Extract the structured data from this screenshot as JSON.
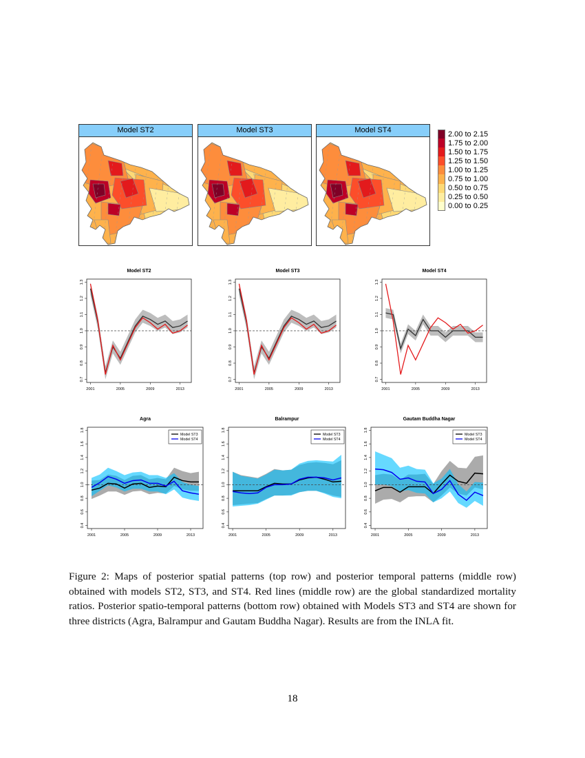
{
  "maps": {
    "panels": [
      {
        "title": "Model ST2"
      },
      {
        "title": "Model ST3"
      },
      {
        "title": "Model ST4"
      }
    ],
    "legend": [
      {
        "label": "2.00 to 2.15",
        "color": "#7f0026"
      },
      {
        "label": "1.75 to 2.00",
        "color": "#bd0026"
      },
      {
        "label": "1.50 to 1.75",
        "color": "#e31a1c"
      },
      {
        "label": "1.25 to 1.50",
        "color": "#fc4e2a"
      },
      {
        "label": "1.00 to 1.25",
        "color": "#fd8d3c"
      },
      {
        "label": "0.75 to 1.00",
        "color": "#feb24c"
      },
      {
        "label": "0.50 to 0.75",
        "color": "#fed976"
      },
      {
        "label": "0.25 to 0.50",
        "color": "#ffeda0"
      },
      {
        "label": "0.00 to 0.25",
        "color": "#ffffcc"
      }
    ]
  },
  "chart_data": [
    {
      "type": "line",
      "title": "Model ST2",
      "x": [
        2001,
        2002,
        2003,
        2004,
        2005,
        2006,
        2007,
        2008,
        2009,
        2010,
        2011,
        2012,
        2013,
        2014
      ],
      "xticks": [
        "2001",
        "2005",
        "2009",
        "2013"
      ],
      "yticks": [
        "0.7",
        "0.8",
        "0.9",
        "1.0",
        "1.1",
        "1.2",
        "1.3"
      ],
      "ylim": [
        0.7,
        1.3
      ],
      "reference_line": 1.0,
      "series": [
        {
          "color": "#333333",
          "band_color": "#bdbdbd",
          "values": [
            1.26,
            1.05,
            0.74,
            0.9,
            0.83,
            0.93,
            1.03,
            1.09,
            1.07,
            1.04,
            1.06,
            1.02,
            1.03,
            1.06
          ],
          "band": 0.04
        },
        {
          "color": "#e41a1c",
          "values": [
            1.29,
            1.06,
            0.73,
            0.91,
            0.82,
            0.92,
            1.02,
            1.08,
            1.05,
            1.01,
            1.04,
            0.985,
            1.0,
            1.035
          ]
        }
      ]
    },
    {
      "type": "line",
      "title": "Model ST3",
      "x": [
        2001,
        2002,
        2003,
        2004,
        2005,
        2006,
        2007,
        2008,
        2009,
        2010,
        2011,
        2012,
        2013,
        2014
      ],
      "xticks": [
        "2001",
        "2005",
        "2009",
        "2013"
      ],
      "yticks": [
        "0.7",
        "0.8",
        "0.9",
        "1.0",
        "1.1",
        "1.2",
        "1.3"
      ],
      "ylim": [
        0.7,
        1.3
      ],
      "reference_line": 1.0,
      "series": [
        {
          "color": "#333333",
          "band_color": "#bdbdbd",
          "values": [
            1.26,
            1.05,
            0.74,
            0.9,
            0.83,
            0.93,
            1.03,
            1.09,
            1.07,
            1.04,
            1.06,
            1.02,
            1.03,
            1.06
          ],
          "band": 0.04
        },
        {
          "color": "#e41a1c",
          "values": [
            1.29,
            1.06,
            0.73,
            0.91,
            0.82,
            0.92,
            1.02,
            1.08,
            1.05,
            1.01,
            1.04,
            0.985,
            1.0,
            1.035
          ]
        }
      ]
    },
    {
      "type": "line",
      "title": "Model ST4",
      "x": [
        2001,
        2002,
        2003,
        2004,
        2005,
        2006,
        2007,
        2008,
        2009,
        2010,
        2011,
        2012,
        2013,
        2014
      ],
      "xticks": [
        "2001",
        "2005",
        "2009",
        "2013"
      ],
      "yticks": [
        "0.7",
        "0.8",
        "0.9",
        "1.0",
        "1.1",
        "1.2",
        "1.3"
      ],
      "ylim": [
        0.7,
        1.3
      ],
      "reference_line": 1.0,
      "series": [
        {
          "color": "#333333",
          "band_color": "#bdbdbd",
          "values": [
            1.11,
            1.1,
            0.89,
            1.01,
            0.97,
            1.07,
            1.0,
            1.0,
            0.96,
            1.0,
            1.0,
            1.0,
            0.96,
            0.96
          ],
          "band": 0.03
        },
        {
          "color": "#e41a1c",
          "values": [
            1.29,
            1.06,
            0.73,
            0.91,
            0.82,
            0.92,
            1.02,
            1.08,
            1.05,
            1.01,
            1.04,
            0.985,
            1.0,
            1.035
          ]
        }
      ]
    },
    {
      "type": "line",
      "title": "Agra",
      "x": [
        2001,
        2002,
        2003,
        2004,
        2005,
        2006,
        2007,
        2008,
        2009,
        2010,
        2011,
        2012,
        2013,
        2014
      ],
      "xticks": [
        "2001",
        "2005",
        "2009",
        "2013"
      ],
      "yticks": [
        "0.4",
        "0.6",
        "0.8",
        "1.0",
        "1.2",
        "1.4",
        "1.6",
        "1.8"
      ],
      "ylim": [
        0.4,
        1.8
      ],
      "reference_line": 1.0,
      "legend": "top-right",
      "series": [
        {
          "name": "Model ST3",
          "color": "#000000",
          "band_color": "#a6a6a6",
          "values": [
            0.92,
            0.95,
            1.02,
            1.01,
            0.95,
            1.01,
            1.02,
            0.96,
            0.98,
            0.97,
            1.11,
            1.06,
            1.04,
            1.04
          ],
          "lower": [
            0.79,
            0.84,
            0.9,
            0.9,
            0.85,
            0.9,
            0.91,
            0.86,
            0.88,
            0.87,
            0.98,
            0.93,
            0.91,
            0.91
          ],
          "upper": [
            1.06,
            1.07,
            1.15,
            1.13,
            1.07,
            1.13,
            1.14,
            1.08,
            1.1,
            1.08,
            1.25,
            1.2,
            1.17,
            1.19
          ]
        },
        {
          "name": "Model ST4",
          "color": "#0000ee",
          "band_color": "#00bfff",
          "values": [
            0.96,
            1.03,
            1.12,
            1.08,
            1.02,
            1.06,
            1.07,
            1.02,
            1.02,
            0.98,
            1.05,
            0.91,
            0.88,
            0.86
          ],
          "lower": [
            0.83,
            0.91,
            0.99,
            0.96,
            0.9,
            0.94,
            0.94,
            0.9,
            0.9,
            0.86,
            0.93,
            0.81,
            0.78,
            0.76
          ],
          "upper": [
            1.1,
            1.15,
            1.25,
            1.2,
            1.14,
            1.18,
            1.19,
            1.14,
            1.14,
            1.1,
            1.17,
            1.04,
            1.0,
            0.98
          ]
        }
      ]
    },
    {
      "type": "line",
      "title": "Balrampur",
      "x": [
        2001,
        2002,
        2003,
        2004,
        2005,
        2006,
        2007,
        2008,
        2009,
        2010,
        2011,
        2012,
        2013,
        2014
      ],
      "xticks": [
        "2001",
        "2005",
        "2009",
        "2013"
      ],
      "yticks": [
        "0.4",
        "0.6",
        "0.8",
        "1.0",
        "1.2",
        "1.4",
        "1.6",
        "1.8"
      ],
      "ylim": [
        0.4,
        1.8
      ],
      "reference_line": 1.0,
      "legend": "top-right",
      "series": [
        {
          "name": "Model ST3",
          "color": "#000000",
          "band_color": "#a6a6a6",
          "values": [
            0.91,
            0.91,
            0.91,
            0.91,
            0.97,
            1.02,
            1.01,
            1.01,
            1.07,
            1.1,
            1.11,
            1.08,
            1.04,
            1.05
          ],
          "lower": [
            0.7,
            0.71,
            0.72,
            0.73,
            0.79,
            0.84,
            0.84,
            0.85,
            0.89,
            0.91,
            0.91,
            0.88,
            0.84,
            0.82
          ],
          "upper": [
            1.19,
            1.14,
            1.12,
            1.1,
            1.16,
            1.23,
            1.21,
            1.22,
            1.29,
            1.32,
            1.33,
            1.32,
            1.3,
            1.36
          ]
        },
        {
          "name": "Model ST4",
          "color": "#0000ee",
          "band_color": "#00bfff",
          "values": [
            0.9,
            0.88,
            0.87,
            0.88,
            0.96,
            1.0,
            1.0,
            1.01,
            1.08,
            1.11,
            1.11,
            1.1,
            1.07,
            1.1
          ],
          "lower": [
            0.68,
            0.69,
            0.7,
            0.72,
            0.78,
            0.84,
            0.84,
            0.84,
            0.89,
            0.91,
            0.91,
            0.87,
            0.82,
            0.8
          ],
          "upper": [
            1.19,
            1.13,
            1.11,
            1.09,
            1.15,
            1.22,
            1.21,
            1.22,
            1.31,
            1.35,
            1.36,
            1.35,
            1.34,
            1.44
          ]
        }
      ]
    },
    {
      "type": "line",
      "title": "Gautam Buddha Nagar",
      "x": [
        2001,
        2002,
        2003,
        2004,
        2005,
        2006,
        2007,
        2008,
        2009,
        2010,
        2011,
        2012,
        2013,
        2014
      ],
      "xticks": [
        "2001",
        "2005",
        "2009",
        "2013"
      ],
      "yticks": [
        "0.4",
        "0.6",
        "0.8",
        "1.0",
        "1.2",
        "1.4",
        "1.6",
        "1.8"
      ],
      "ylim": [
        0.4,
        1.8
      ],
      "reference_line": 1.0,
      "legend": "top-right",
      "series": [
        {
          "name": "Model ST3",
          "color": "#000000",
          "band_color": "#a6a6a6",
          "values": [
            0.91,
            0.96,
            0.96,
            0.89,
            0.97,
            0.97,
            0.97,
            0.87,
            1.01,
            1.14,
            1.05,
            1.02,
            1.17,
            1.16
          ],
          "lower": [
            0.72,
            0.78,
            0.79,
            0.74,
            0.82,
            0.83,
            0.83,
            0.74,
            0.84,
            0.96,
            0.87,
            0.84,
            0.96,
            0.93
          ],
          "upper": [
            1.14,
            1.16,
            1.15,
            1.07,
            1.15,
            1.15,
            1.16,
            1.01,
            1.2,
            1.35,
            1.25,
            1.24,
            1.41,
            1.43
          ]
        },
        {
          "name": "Model ST4",
          "color": "#0000ee",
          "band_color": "#00bfff",
          "values": [
            1.23,
            1.22,
            1.18,
            1.08,
            1.1,
            1.05,
            1.04,
            0.87,
            0.93,
            1.06,
            0.86,
            0.77,
            0.89,
            0.84
          ],
          "lower": [
            1.0,
            1.0,
            0.98,
            0.9,
            0.92,
            0.88,
            0.87,
            0.74,
            0.8,
            0.9,
            0.73,
            0.66,
            0.76,
            0.69
          ],
          "upper": [
            1.49,
            1.44,
            1.39,
            1.25,
            1.28,
            1.23,
            1.22,
            1.02,
            1.09,
            1.23,
            1.01,
            0.9,
            1.04,
            1.03
          ]
        }
      ]
    }
  ],
  "caption": "Figure 2: Maps of posterior spatial patterns (top row) and posterior temporal patterns (middle row) obtained with models ST2, ST3, and ST4. Red lines (middle row) are the global standardized mortality ratios. Posterior spatio-temporal patterns (bottom row) obtained with Models ST3 and ST4 are shown for three districts (Agra, Balrampur and Gautam Buddha Nagar). Results are from the INLA fit.",
  "page_number": "18"
}
